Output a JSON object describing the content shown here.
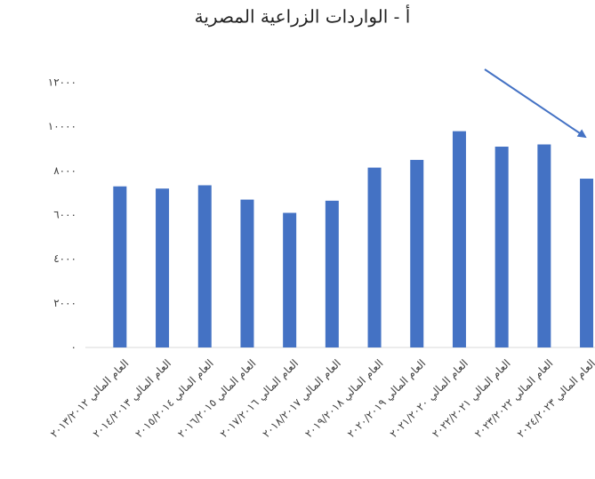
{
  "chart_data": {
    "type": "bar",
    "title": "أ - الواردات الزراعية المصرية",
    "categories": [
      "العام المالي ٢٠١٣/٢٠١٢",
      "العام المالي ٢٠١٤/٢٠١٣",
      "العام المالي ٢٠١٥/٢٠١٤",
      "العام المالي ٢٠١٦/٢٠١٥",
      "العام المالي ٢٠١٧/٢٠١٦",
      "العام المالي ٢٠١٨/٢٠١٧",
      "العام المالي ٢٠١٩/٢٠١٨",
      "العام المالي ٢٠٢٠/٢٠١٩",
      "العام المالي ٢٠٢١/٢٠٢٠",
      "العام المالي ٢٠٢٢/٢٠٢١",
      "العام المالي ٢٠٢٣/٢٠٢٢",
      "العام المالي ٢٠٢٤/٢٠٢٣"
    ],
    "values": [
      7300,
      7200,
      7350,
      6700,
      6100,
      6650,
      8150,
      8500,
      9800,
      9100,
      9200,
      7650
    ],
    "color": "#4472c4",
    "ylim": [
      0,
      12000
    ],
    "yticks": [
      {
        "value": 0,
        "label": "٠"
      },
      {
        "value": 2000,
        "label": "٢٠٠٠"
      },
      {
        "value": 4000,
        "label": "٤٠٠٠"
      },
      {
        "value": 6000,
        "label": "٦٠٠٠"
      },
      {
        "value": 8000,
        "label": "٨٠٠٠"
      },
      {
        "value": 10000,
        "label": "١٠٠٠٠"
      },
      {
        "value": 12000,
        "label": "١٢٠٠٠"
      }
    ],
    "grid": false
  }
}
